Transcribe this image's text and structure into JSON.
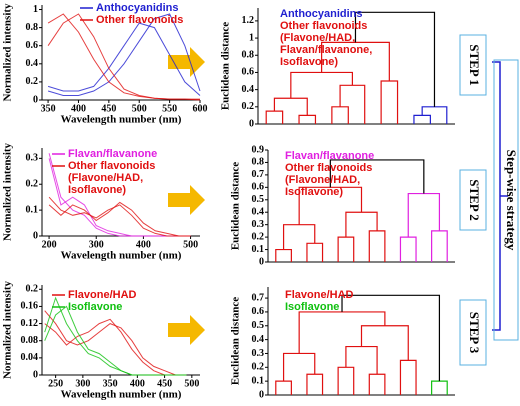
{
  "chart_data": [
    {
      "type": "line",
      "xlabel": "Wavelength number (nm)",
      "ylabel": "Normalized intensity",
      "x": [
        350,
        375,
        400,
        425,
        450,
        475,
        500,
        525,
        550,
        575,
        600
      ],
      "xlim": [
        340,
        600
      ],
      "xticks": [
        350,
        400,
        450,
        500,
        550,
        600
      ],
      "ylim": [
        0,
        1.05
      ],
      "yticks": [
        0,
        0.2,
        0.4,
        0.6,
        0.8,
        1
      ],
      "series": [
        {
          "name": "Anthocyanidins",
          "color": "#1f1fd0",
          "values": [
            [
              0.1,
              0.05,
              0.05,
              0.1,
              0.2,
              0.4,
              0.65,
              0.9,
              0.95,
              0.6,
              0.1
            ],
            [
              0.15,
              0.1,
              0.1,
              0.15,
              0.35,
              0.6,
              0.85,
              0.8,
              0.5,
              0.2,
              0.05
            ]
          ]
        },
        {
          "name": "Other flavonoids",
          "color": "#e01010",
          "values": [
            [
              0.85,
              0.95,
              0.75,
              0.45,
              0.2,
              0.08,
              0.04,
              0.02,
              0.01,
              0.01,
              0.01
            ],
            [
              0.6,
              0.85,
              0.95,
              0.7,
              0.35,
              0.12,
              0.05,
              0.02,
              0.01,
              0.01,
              0
            ]
          ]
        }
      ]
    },
    {
      "type": "line",
      "xlabel": "Wavelength number (nm)",
      "ylabel": "Normalized intensity",
      "x": [
        200,
        225,
        250,
        275,
        300,
        325,
        350,
        375,
        400,
        425,
        450,
        475,
        500
      ],
      "xlim": [
        185,
        520
      ],
      "xticks": [
        200,
        300,
        400,
        500
      ],
      "ylim": [
        0,
        0.34
      ],
      "yticks": [
        0,
        0.1,
        0.2,
        0.3
      ],
      "series": [
        {
          "name": "Flavan/flavanone",
          "color": "#e020e0",
          "values": [
            [
              0.32,
              0.15,
              0.1,
              0.08,
              0.03,
              0.01,
              0,
              0,
              0,
              0,
              0,
              0,
              0
            ],
            [
              0.3,
              0.12,
              0.15,
              0.12,
              0.04,
              0.02,
              0.01,
              0,
              0,
              0,
              0,
              0,
              0
            ]
          ]
        },
        {
          "name": "Other flavonoids (Flavone/HAD, Isoflavone)",
          "color": "#e01010",
          "values": [
            [
              0.12,
              0.08,
              0.12,
              0.1,
              0.06,
              0.09,
              0.13,
              0.1,
              0.05,
              0.02,
              0.01,
              0,
              0
            ],
            [
              0.15,
              0.1,
              0.08,
              0.09,
              0.07,
              0.1,
              0.12,
              0.08,
              0.03,
              0.01,
              0,
              0,
              0
            ]
          ]
        }
      ]
    },
    {
      "type": "line",
      "xlabel": "Wavelength number (nm)",
      "ylabel": "Normalized intensity",
      "x": [
        230,
        250,
        270,
        290,
        310,
        330,
        350,
        370,
        390,
        410,
        430,
        450,
        470,
        490
      ],
      "xlim": [
        225,
        515
      ],
      "xticks": [
        250,
        300,
        350,
        400,
        450,
        500
      ],
      "ylim": [
        0,
        0.21
      ],
      "yticks": [
        0,
        0.04,
        0.08,
        0.12,
        0.16,
        0.2
      ],
      "series": [
        {
          "name": "Flavone/HAD",
          "color": "#e01010",
          "values": [
            [
              0.15,
              0.12,
              0.08,
              0.07,
              0.08,
              0.1,
              0.12,
              0.11,
              0.08,
              0.04,
              0.02,
              0.01,
              0,
              0
            ],
            [
              0.12,
              0.1,
              0.07,
              0.09,
              0.1,
              0.12,
              0.13,
              0.1,
              0.06,
              0.03,
              0.01,
              0,
              0,
              0
            ]
          ]
        },
        {
          "name": "Isoflavone",
          "color": "#10c010",
          "values": [
            [
              0.1,
              0.18,
              0.12,
              0.08,
              0.05,
              0.04,
              0.02,
              0.01,
              0,
              0,
              0,
              0,
              0,
              0
            ],
            [
              0.08,
              0.14,
              0.16,
              0.1,
              0.06,
              0.05,
              0.03,
              0.01,
              0,
              0,
              0,
              0,
              0,
              0
            ]
          ]
        }
      ]
    },
    {
      "type": "dendrogram",
      "ylabel": "Euclidean distance",
      "ylim": [
        0,
        1.35
      ],
      "yticks": [
        0,
        0.2,
        0.4,
        0.6,
        0.8,
        1,
        1.2
      ],
      "leaves": 12,
      "legend": [
        {
          "text": "Anthocyanidins",
          "color": "#1f1fd0"
        },
        {
          "text": "Other flavonoids (Flavone/HAD, Flavan/flavanone, Isoflavone)",
          "color": "#e01010"
        }
      ],
      "merges": [
        {
          "a": 0,
          "b": 1,
          "height": 0.15,
          "color": "#e01010"
        },
        {
          "a": 2,
          "b": 3,
          "height": 0.1,
          "color": "#e01010"
        },
        {
          "a": 12,
          "b": 13,
          "height": 0.3,
          "color": "#e01010"
        },
        {
          "a": 4,
          "b": 5,
          "height": 0.2,
          "color": "#e01010"
        },
        {
          "a": 15,
          "b": 6,
          "height": 0.45,
          "color": "#e01010"
        },
        {
          "a": 14,
          "b": 16,
          "height": 0.6,
          "color": "#e01010"
        },
        {
          "a": 7,
          "b": 8,
          "height": 0.5,
          "color": "#e01010"
        },
        {
          "a": 17,
          "b": 18,
          "height": 0.95,
          "color": "#e01010"
        },
        {
          "a": 9,
          "b": 10,
          "height": 0.1,
          "color": "#1f1fd0"
        },
        {
          "a": 20,
          "b": 11,
          "height": 0.2,
          "color": "#1f1fd0"
        },
        {
          "a": 19,
          "b": 21,
          "height": 1.3,
          "color": "#000000"
        }
      ]
    },
    {
      "type": "dendrogram",
      "ylabel": "Euclidean distance",
      "ylim": [
        0,
        0.9
      ],
      "yticks": [
        0,
        0.1,
        0.2,
        0.3,
        0.4,
        0.5,
        0.6,
        0.7,
        0.8,
        0.9
      ],
      "leaves": 12,
      "legend": [
        {
          "text": "Flavan/flavanone",
          "color": "#e020e0"
        },
        {
          "text": "Other flavonoids (Flavone/HAD, Isoflavone)",
          "color": "#e01010"
        }
      ],
      "merges": [
        {
          "a": 0,
          "b": 1,
          "height": 0.1,
          "color": "#e01010"
        },
        {
          "a": 2,
          "b": 3,
          "height": 0.15,
          "color": "#e01010"
        },
        {
          "a": 12,
          "b": 13,
          "height": 0.3,
          "color": "#e01010"
        },
        {
          "a": 4,
          "b": 5,
          "height": 0.2,
          "color": "#e01010"
        },
        {
          "a": 6,
          "b": 7,
          "height": 0.25,
          "color": "#e01010"
        },
        {
          "a": 15,
          "b": 16,
          "height": 0.4,
          "color": "#e01010"
        },
        {
          "a": 14,
          "b": 17,
          "height": 0.6,
          "color": "#e01010"
        },
        {
          "a": 8,
          "b": 9,
          "height": 0.2,
          "color": "#e020e0"
        },
        {
          "a": 10,
          "b": 11,
          "height": 0.25,
          "color": "#e020e0"
        },
        {
          "a": 19,
          "b": 20,
          "height": 0.55,
          "color": "#e020e0"
        },
        {
          "a": 18,
          "b": 21,
          "height": 0.82,
          "color": "#000000"
        }
      ]
    },
    {
      "type": "dendrogram",
      "ylabel": "Euclidean distance",
      "ylim": [
        0,
        0.78
      ],
      "yticks": [
        0,
        0.1,
        0.2,
        0.3,
        0.4,
        0.5,
        0.6,
        0.7
      ],
      "leaves": 12,
      "legend": [
        {
          "text": "Flavone/HAD",
          "color": "#e01010"
        },
        {
          "text": "Isoflavone",
          "color": "#10c010"
        }
      ],
      "merges": [
        {
          "a": 0,
          "b": 1,
          "height": 0.1,
          "color": "#e01010"
        },
        {
          "a": 2,
          "b": 3,
          "height": 0.15,
          "color": "#e01010"
        },
        {
          "a": 12,
          "b": 13,
          "height": 0.3,
          "color": "#e01010"
        },
        {
          "a": 4,
          "b": 5,
          "height": 0.2,
          "color": "#e01010"
        },
        {
          "a": 6,
          "b": 7,
          "height": 0.15,
          "color": "#e01010"
        },
        {
          "a": 15,
          "b": 16,
          "height": 0.35,
          "color": "#e01010"
        },
        {
          "a": 8,
          "b": 9,
          "height": 0.25,
          "color": "#e01010"
        },
        {
          "a": 17,
          "b": 18,
          "height": 0.5,
          "color": "#e01010"
        },
        {
          "a": 14,
          "b": 19,
          "height": 0.6,
          "color": "#e01010"
        },
        {
          "a": 10,
          "b": 11,
          "height": 0.1,
          "color": "#10c010"
        },
        {
          "a": 20,
          "b": 21,
          "height": 0.72,
          "color": "#000000"
        }
      ]
    }
  ],
  "steps": [
    "STEP 1",
    "STEP 2",
    "STEP 3"
  ],
  "strategy": "Step-wise strategy"
}
